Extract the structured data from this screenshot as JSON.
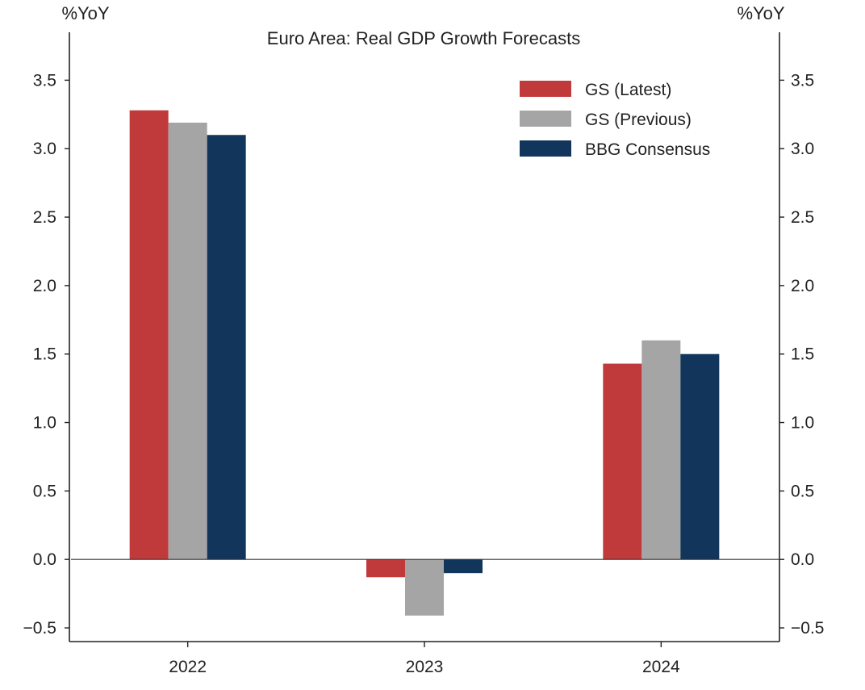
{
  "chart_data": {
    "type": "bar",
    "title": "Euro Area: Real GDP Growth Forecasts",
    "ylabel_left": "%YoY",
    "ylabel_right": "%YoY",
    "categories": [
      "2022",
      "2023",
      "2024"
    ],
    "series": [
      {
        "name": "GS (Latest)",
        "color": "#c0393b",
        "values": [
          3.28,
          -0.13,
          1.43
        ]
      },
      {
        "name": "GS (Previous)",
        "color": "#a5a5a5",
        "values": [
          3.19,
          -0.41,
          1.6
        ]
      },
      {
        "name": "BBG Consensus",
        "color": "#12355b",
        "values": [
          3.1,
          -0.1,
          1.5
        ]
      }
    ],
    "ylim": [
      -0.6,
      3.85
    ],
    "yticks": [
      -0.5,
      0.0,
      0.5,
      1.0,
      1.5,
      2.0,
      2.5,
      3.0,
      3.5
    ],
    "ytick_labels": [
      "−0.5",
      "0.0",
      "0.5",
      "1.0",
      "1.5",
      "2.0",
      "2.5",
      "3.0",
      "3.5"
    ],
    "legend_position": "top-right",
    "grid": false
  }
}
